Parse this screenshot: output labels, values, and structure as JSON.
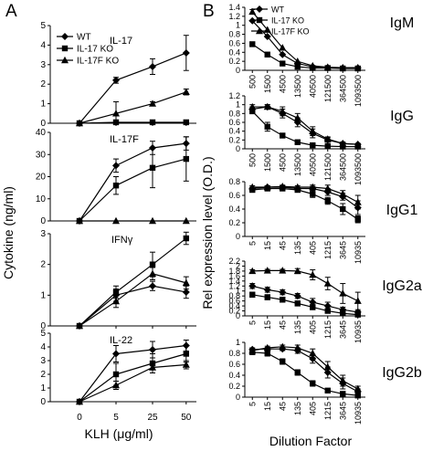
{
  "figure": {
    "panel_labels": [
      "A",
      "B"
    ]
  },
  "chart_data": [
    {
      "type": "line",
      "panel": "A",
      "title": "IL-17",
      "x": [
        0,
        5,
        25,
        50
      ],
      "ylim": [
        0,
        5
      ],
      "yticks": [
        "0",
        "1",
        "2",
        "3",
        "4",
        "5"
      ],
      "series": [
        {
          "name": "WT",
          "marker": "diamond",
          "values": [
            0,
            2.2,
            2.9,
            3.6
          ],
          "errors": [
            0,
            0.15,
            0.4,
            0.9
          ]
        },
        {
          "name": "IL-17 KO",
          "marker": "square",
          "values": [
            0,
            0.05,
            0.05,
            0.05
          ],
          "errors": [
            0,
            0,
            0,
            0
          ]
        },
        {
          "name": "IL-17F KO",
          "marker": "triangle",
          "values": [
            0,
            0.5,
            1.0,
            1.6
          ],
          "errors": [
            0,
            0.6,
            0.1,
            0.15
          ]
        }
      ],
      "legend": [
        "WT",
        "IL-17 KO",
        "IL-17F KO"
      ]
    },
    {
      "type": "line",
      "panel": "A",
      "title": "IL-17F",
      "x": [
        0,
        5,
        25,
        50
      ],
      "ylim": [
        0,
        40
      ],
      "yticks": [
        "0",
        "10",
        "20",
        "30",
        "40"
      ],
      "series": [
        {
          "name": "WT",
          "marker": "diamond",
          "values": [
            0,
            25,
            33,
            35
          ],
          "errors": [
            0,
            3,
            3,
            3
          ]
        },
        {
          "name": "IL-17 KO",
          "marker": "square",
          "values": [
            0,
            16,
            24,
            28
          ],
          "errors": [
            0,
            4,
            9,
            10
          ]
        },
        {
          "name": "IL-17F KO",
          "marker": "triangle",
          "values": [
            0,
            0,
            0,
            0
          ],
          "errors": [
            0,
            0,
            0,
            0
          ]
        }
      ]
    },
    {
      "type": "line",
      "panel": "A",
      "title": "IFNγ",
      "x": [
        0,
        5,
        25,
        50
      ],
      "ylim": [
        0,
        3
      ],
      "yticks": [
        "0",
        "1",
        "2",
        "3"
      ],
      "series": [
        {
          "name": "WT",
          "marker": "diamond",
          "values": [
            0,
            1.0,
            1.3,
            1.1
          ],
          "errors": [
            0,
            0.2,
            0.15,
            0.2
          ]
        },
        {
          "name": "IL-17 KO",
          "marker": "square",
          "values": [
            0,
            1.1,
            2.0,
            2.85
          ],
          "errors": [
            0,
            0.2,
            0.4,
            0.2
          ]
        },
        {
          "name": "IL-17F KO",
          "marker": "triangle",
          "values": [
            0,
            0.8,
            1.7,
            1.4
          ],
          "errors": [
            0,
            0.2,
            0.2,
            0.2
          ]
        }
      ]
    },
    {
      "type": "line",
      "panel": "A",
      "title": "IL-22",
      "x": [
        0,
        5,
        25,
        50
      ],
      "ylim": [
        0,
        5
      ],
      "yticks": [
        "0",
        "1",
        "2",
        "3",
        "4",
        "5"
      ],
      "series": [
        {
          "name": "WT",
          "marker": "diamond",
          "values": [
            0,
            3.5,
            3.8,
            4.1
          ],
          "errors": [
            0,
            0.6,
            0.6,
            0.4
          ]
        },
        {
          "name": "IL-17 KO",
          "marker": "square",
          "values": [
            0,
            2.0,
            2.8,
            3.5
          ],
          "errors": [
            0,
            0.8,
            0.7,
            0.6
          ]
        },
        {
          "name": "IL-17F KO",
          "marker": "triangle",
          "values": [
            0,
            1.2,
            2.5,
            2.7
          ],
          "errors": [
            0,
            0.3,
            0.4,
            0.3
          ]
        }
      ]
    },
    {
      "type": "line",
      "panel": "B",
      "title": "IgM",
      "categories": [
        "500",
        "1500",
        "4500",
        "13500",
        "40500",
        "121500",
        "364500",
        "1093500"
      ],
      "ylim": [
        0,
        1.4
      ],
      "yticks": [
        "0",
        "0.2",
        "0.4",
        "0.6",
        "0.8",
        "1",
        "1.2",
        "1.4"
      ],
      "series": [
        {
          "name": "WT",
          "marker": "diamond",
          "values": [
            1.1,
            0.75,
            0.35,
            0.15,
            0.08,
            0.06,
            0.05,
            0.05
          ],
          "errors": [
            0,
            0,
            0,
            0,
            0,
            0,
            0,
            0
          ]
        },
        {
          "name": "IL-17 KO",
          "marker": "square",
          "values": [
            0.58,
            0.35,
            0.15,
            0.08,
            0.05,
            0.05,
            0.04,
            0.04
          ],
          "errors": [
            0,
            0,
            0,
            0,
            0,
            0,
            0,
            0
          ]
        },
        {
          "name": "IL-17F KO",
          "marker": "triangle",
          "values": [
            1.3,
            0.9,
            0.5,
            0.2,
            0.1,
            0.07,
            0.06,
            0.06
          ],
          "errors": [
            0.05,
            0,
            0,
            0,
            0,
            0,
            0,
            0
          ]
        }
      ],
      "legend": [
        "WT",
        "IL-17 KO",
        "IL-17F KO"
      ]
    },
    {
      "type": "line",
      "panel": "B",
      "title": "IgG",
      "categories": [
        "500",
        "1500",
        "4500",
        "13500",
        "40500",
        "121500",
        "364500",
        "1093500"
      ],
      "ylim": [
        0,
        1.2
      ],
      "yticks": [
        "0",
        "0.2",
        "0.4",
        "0.6",
        "0.8",
        "1",
        "1.2"
      ],
      "series": [
        {
          "name": "WT",
          "marker": "diamond",
          "values": [
            0.9,
            0.95,
            0.8,
            0.6,
            0.35,
            0.2,
            0.12,
            0.1
          ],
          "errors": [
            0.05,
            0.05,
            0.1,
            0.1,
            0.1,
            0.05,
            0.03,
            0.02
          ]
        },
        {
          "name": "IL-17 KO",
          "marker": "square",
          "values": [
            0.85,
            0.5,
            0.3,
            0.15,
            0.08,
            0.06,
            0.05,
            0.05
          ],
          "errors": [
            0.05,
            0.1,
            0.05,
            0.03,
            0.02,
            0.01,
            0.01,
            0.01
          ]
        },
        {
          "name": "IL-17F KO",
          "marker": "triangle",
          "values": [
            0.95,
            0.95,
            0.85,
            0.7,
            0.4,
            0.22,
            0.12,
            0.1
          ],
          "errors": [
            0.05,
            0.05,
            0.1,
            0.1,
            0.1,
            0.05,
            0.03,
            0.02
          ]
        }
      ]
    },
    {
      "type": "line",
      "panel": "B",
      "title": "IgG1",
      "categories": [
        "5",
        "15",
        "45",
        "135",
        "405",
        "1215",
        "3645",
        "10935"
      ],
      "ylim": [
        0,
        0.8
      ],
      "yticks": [
        "0",
        "0.2",
        "0.4",
        "0.6",
        "0.8"
      ],
      "series": [
        {
          "name": "WT",
          "marker": "diamond",
          "values": [
            0.7,
            0.72,
            0.72,
            0.7,
            0.7,
            0.65,
            0.58,
            0.42
          ],
          "errors": [
            0.02,
            0.02,
            0.02,
            0.02,
            0.03,
            0.05,
            0.05,
            0.1
          ]
        },
        {
          "name": "IL-17 KO",
          "marker": "square",
          "values": [
            0.68,
            0.7,
            0.7,
            0.68,
            0.62,
            0.52,
            0.4,
            0.25
          ],
          "errors": [
            0.02,
            0.02,
            0.02,
            0.02,
            0.05,
            0.05,
            0.08,
            0.05
          ]
        },
        {
          "name": "IL-17F KO",
          "marker": "triangle",
          "values": [
            0.72,
            0.72,
            0.73,
            0.72,
            0.72,
            0.7,
            0.62,
            0.5
          ],
          "errors": [
            0.02,
            0.02,
            0.02,
            0.02,
            0.03,
            0.05,
            0.05,
            0.1
          ]
        }
      ]
    },
    {
      "type": "line",
      "panel": "B",
      "title": "IgG2a",
      "categories": [
        "5",
        "15",
        "45",
        "135",
        "405",
        "1215",
        "3645",
        "10935"
      ],
      "ylim": [
        0,
        2.2
      ],
      "yticks": [
        "0",
        "0.2",
        "0.4",
        "0.6",
        "0.8",
        "1",
        "1.2",
        "1.4",
        "1.6",
        "1.8",
        "2",
        "2.2"
      ],
      "series": [
        {
          "name": "WT",
          "marker": "diamond",
          "values": [
            1.2,
            1.05,
            0.95,
            0.8,
            0.55,
            0.4,
            0.25,
            0.15
          ],
          "errors": [
            0.1,
            0.1,
            0.1,
            0.1,
            0.15,
            0.15,
            0.1,
            0.05
          ]
        },
        {
          "name": "IL-17 KO",
          "marker": "square",
          "values": [
            0.85,
            0.75,
            0.65,
            0.5,
            0.35,
            0.2,
            0.1,
            0.05
          ],
          "errors": [
            0.1,
            0.1,
            0.1,
            0.1,
            0.1,
            0.05,
            0.03,
            0.02
          ]
        },
        {
          "name": "IL-17F KO",
          "marker": "triangle",
          "values": [
            1.8,
            1.82,
            1.82,
            1.8,
            1.65,
            1.3,
            0.9,
            0.6
          ],
          "errors": [
            0.05,
            0.05,
            0.05,
            0.1,
            0.2,
            0.25,
            0.4,
            0.35
          ]
        }
      ]
    },
    {
      "type": "line",
      "panel": "B",
      "title": "IgG2b",
      "categories": [
        "5",
        "15",
        "45",
        "135",
        "405",
        "1215",
        "3645",
        "10935"
      ],
      "ylim": [
        0,
        1
      ],
      "yticks": [
        "0",
        "0.2",
        "0.4",
        "0.6",
        "0.8",
        "1"
      ],
      "series": [
        {
          "name": "WT",
          "marker": "diamond",
          "values": [
            0.87,
            0.88,
            0.88,
            0.85,
            0.7,
            0.45,
            0.25,
            0.1
          ],
          "errors": [
            0.03,
            0.03,
            0.03,
            0.05,
            0.08,
            0.1,
            0.1,
            0.05
          ]
        },
        {
          "name": "IL-17 KO",
          "marker": "square",
          "values": [
            0.82,
            0.8,
            0.65,
            0.45,
            0.25,
            0.12,
            0.06,
            0.03
          ],
          "errors": [
            0.03,
            0.05,
            0.05,
            0.05,
            0.05,
            0.03,
            0.02,
            0.01
          ]
        },
        {
          "name": "IL-17F KO",
          "marker": "triangle",
          "values": [
            0.85,
            0.9,
            0.92,
            0.9,
            0.8,
            0.55,
            0.3,
            0.15
          ],
          "errors": [
            0.03,
            0.03,
            0.03,
            0.05,
            0.08,
            0.1,
            0.1,
            0.05
          ]
        }
      ]
    }
  ],
  "left_axes": {
    "xticks": [
      "0",
      "5",
      "25",
      "50"
    ],
    "xlabel": "KLH (μg/ml)",
    "ylabel": "Cytokine (ng/ml)"
  },
  "right_axes": {
    "xlabel": "Dilution Factor",
    "ylabel": "Rel expression level (O.D.)"
  }
}
